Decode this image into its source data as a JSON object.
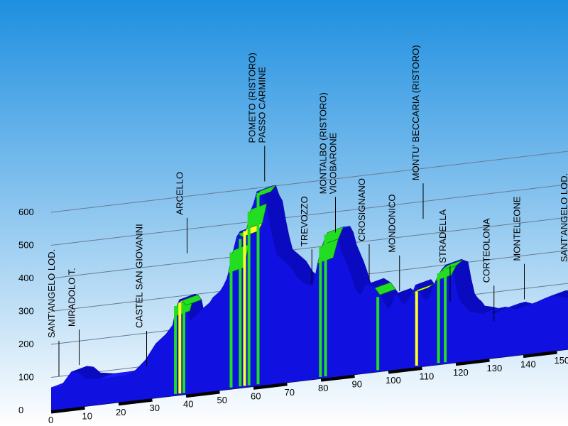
{
  "chart_data": {
    "type": "area",
    "x_ticks": [
      0,
      10,
      20,
      30,
      40,
      50,
      60,
      70,
      80,
      90,
      100,
      110,
      120,
      130,
      140,
      150
    ],
    "y_ticks": [
      0,
      100,
      200,
      300,
      400,
      500,
      600
    ],
    "xlim": [
      0,
      155
    ],
    "ylim": [
      0,
      650
    ],
    "colors": {
      "profile": "#1010e0",
      "climb_green": "#22dd22",
      "climb_yellow": "#ffff22",
      "sky_top": "#1e8fe0",
      "sky_bottom": "#ffffff"
    },
    "profile": [
      [
        0,
        70
      ],
      [
        3,
        72
      ],
      [
        6,
        110
      ],
      [
        8,
        105
      ],
      [
        10,
        85
      ],
      [
        14,
        78
      ],
      [
        18,
        78
      ],
      [
        22,
        80
      ],
      [
        25,
        92
      ],
      [
        28,
        120
      ],
      [
        31,
        165
      ],
      [
        34,
        190
      ],
      [
        36,
        215
      ],
      [
        37,
        265
      ],
      [
        38,
        290
      ],
      [
        39,
        285
      ],
      [
        40,
        270
      ],
      [
        41,
        220
      ],
      [
        43,
        235
      ],
      [
        45,
        255
      ],
      [
        47,
        270
      ],
      [
        48,
        285
      ],
      [
        50,
        300
      ],
      [
        51,
        315
      ],
      [
        52,
        335
      ],
      [
        53,
        370
      ],
      [
        54,
        420
      ],
      [
        55,
        460
      ],
      [
        56,
        475
      ],
      [
        57,
        450
      ],
      [
        58,
        480
      ],
      [
        59,
        530
      ],
      [
        60,
        555
      ],
      [
        61,
        590
      ],
      [
        62,
        590
      ],
      [
        63,
        560
      ],
      [
        64,
        540
      ],
      [
        65,
        480
      ],
      [
        66,
        430
      ],
      [
        67,
        390
      ],
      [
        69,
        370
      ],
      [
        71,
        350
      ],
      [
        73,
        315
      ],
      [
        75,
        295
      ],
      [
        77,
        285
      ],
      [
        78,
        300
      ],
      [
        79,
        350
      ],
      [
        80,
        390
      ],
      [
        81,
        420
      ],
      [
        82,
        440
      ],
      [
        84,
        440
      ],
      [
        85,
        420
      ],
      [
        86,
        380
      ],
      [
        88,
        330
      ],
      [
        89,
        300
      ],
      [
        90,
        265
      ],
      [
        91,
        245
      ],
      [
        92,
        240
      ],
      [
        93,
        265
      ],
      [
        94,
        270
      ],
      [
        96,
        255
      ],
      [
        97,
        240
      ],
      [
        98,
        225
      ],
      [
        99,
        205
      ],
      [
        100,
        185
      ],
      [
        101,
        200
      ],
      [
        102,
        230
      ],
      [
        103,
        220
      ],
      [
        104,
        200
      ],
      [
        105,
        195
      ],
      [
        106,
        210
      ],
      [
        107,
        225
      ],
      [
        108,
        250
      ],
      [
        109,
        235
      ],
      [
        110,
        215
      ],
      [
        111,
        200
      ],
      [
        112,
        205
      ],
      [
        113,
        230
      ],
      [
        114,
        255
      ],
      [
        115,
        275
      ],
      [
        116,
        290
      ],
      [
        117,
        300
      ],
      [
        118,
        295
      ],
      [
        119,
        290
      ],
      [
        120,
        235
      ],
      [
        121,
        190
      ],
      [
        122,
        175
      ],
      [
        123,
        165
      ],
      [
        124,
        150
      ],
      [
        126,
        145
      ],
      [
        128,
        138
      ],
      [
        130,
        140
      ],
      [
        132,
        135
      ],
      [
        134,
        145
      ],
      [
        136,
        148
      ],
      [
        138,
        140
      ],
      [
        140,
        145
      ],
      [
        142,
        150
      ],
      [
        144,
        155
      ],
      [
        146,
        162
      ],
      [
        148,
        168
      ],
      [
        150,
        165
      ],
      [
        152,
        160
      ],
      [
        155,
        150
      ]
    ],
    "climbs": [
      {
        "x": [
          36.5,
          37.5
        ],
        "color": "green"
      },
      {
        "x": [
          37.5,
          38.8
        ],
        "color": "yellow"
      },
      {
        "x": [
          38.8,
          40.0
        ],
        "color": "green"
      },
      {
        "x": [
          52.5,
          54.0
        ],
        "color": "green"
      },
      {
        "x": [
          55.5,
          56.7
        ],
        "color": "green"
      },
      {
        "x": [
          56.7,
          58.0
        ],
        "color": "yellow"
      },
      {
        "x": [
          58.0,
          59.3
        ],
        "color": "green"
      },
      {
        "x": [
          60.5,
          62.0
        ],
        "color": "green"
      },
      {
        "x": [
          79.0,
          80.5
        ],
        "color": "green"
      },
      {
        "x": [
          80.5,
          82.0
        ],
        "color": "green"
      },
      {
        "x": [
          96.0,
          97.5
        ],
        "color": "green"
      },
      {
        "x": [
          107.0,
          109.0
        ],
        "color": "yellow"
      },
      {
        "x": [
          114.0,
          115.5
        ],
        "color": "green"
      },
      {
        "x": [
          115.5,
          117.5
        ],
        "color": "green"
      }
    ],
    "places": [
      {
        "lines": [
          "SANT'ANGELO LOD."
        ],
        "km": 0,
        "alt": 73
      },
      {
        "lines": [
          "MIRADOLO T."
        ],
        "km": 6,
        "alt": 100
      },
      {
        "lines": [
          "CASTEL SAN GIOVANNI"
        ],
        "km": 26,
        "alt": 72
      },
      {
        "lines": [
          "ARCELLO"
        ],
        "km": 38,
        "alt": 400
      },
      {
        "lines": [
          "POMETO (RISTORO)",
          "PASSO CARMINE"
        ],
        "km": 61,
        "alt": 590
      },
      {
        "lines": [
          "TREVOZZO"
        ],
        "km": 75,
        "alt": 260
      },
      {
        "lines": [
          "MONTALBO (RISTORO)",
          "VICOBARONE"
        ],
        "km": 82,
        "alt": 410
      },
      {
        "lines": [
          "CROSIGNANO"
        ],
        "km": 92,
        "alt": 255
      },
      {
        "lines": [
          "MONDONICO"
        ],
        "km": 101,
        "alt": 210
      },
      {
        "lines": [
          "MONTU' BECCARIA (RISTORO)"
        ],
        "km": 108,
        "alt": 420
      },
      {
        "lines": [
          "STRADELLA"
        ],
        "km": 116,
        "alt": 160
      },
      {
        "lines": [
          "CORTEOLONA"
        ],
        "km": 129,
        "alt": 85
      },
      {
        "lines": [
          "MONTELEONE"
        ],
        "km": 138,
        "alt": 140
      },
      {
        "lines": [
          "SANT'ANGELO LOD."
        ],
        "km": 152,
        "alt": 120
      }
    ]
  }
}
